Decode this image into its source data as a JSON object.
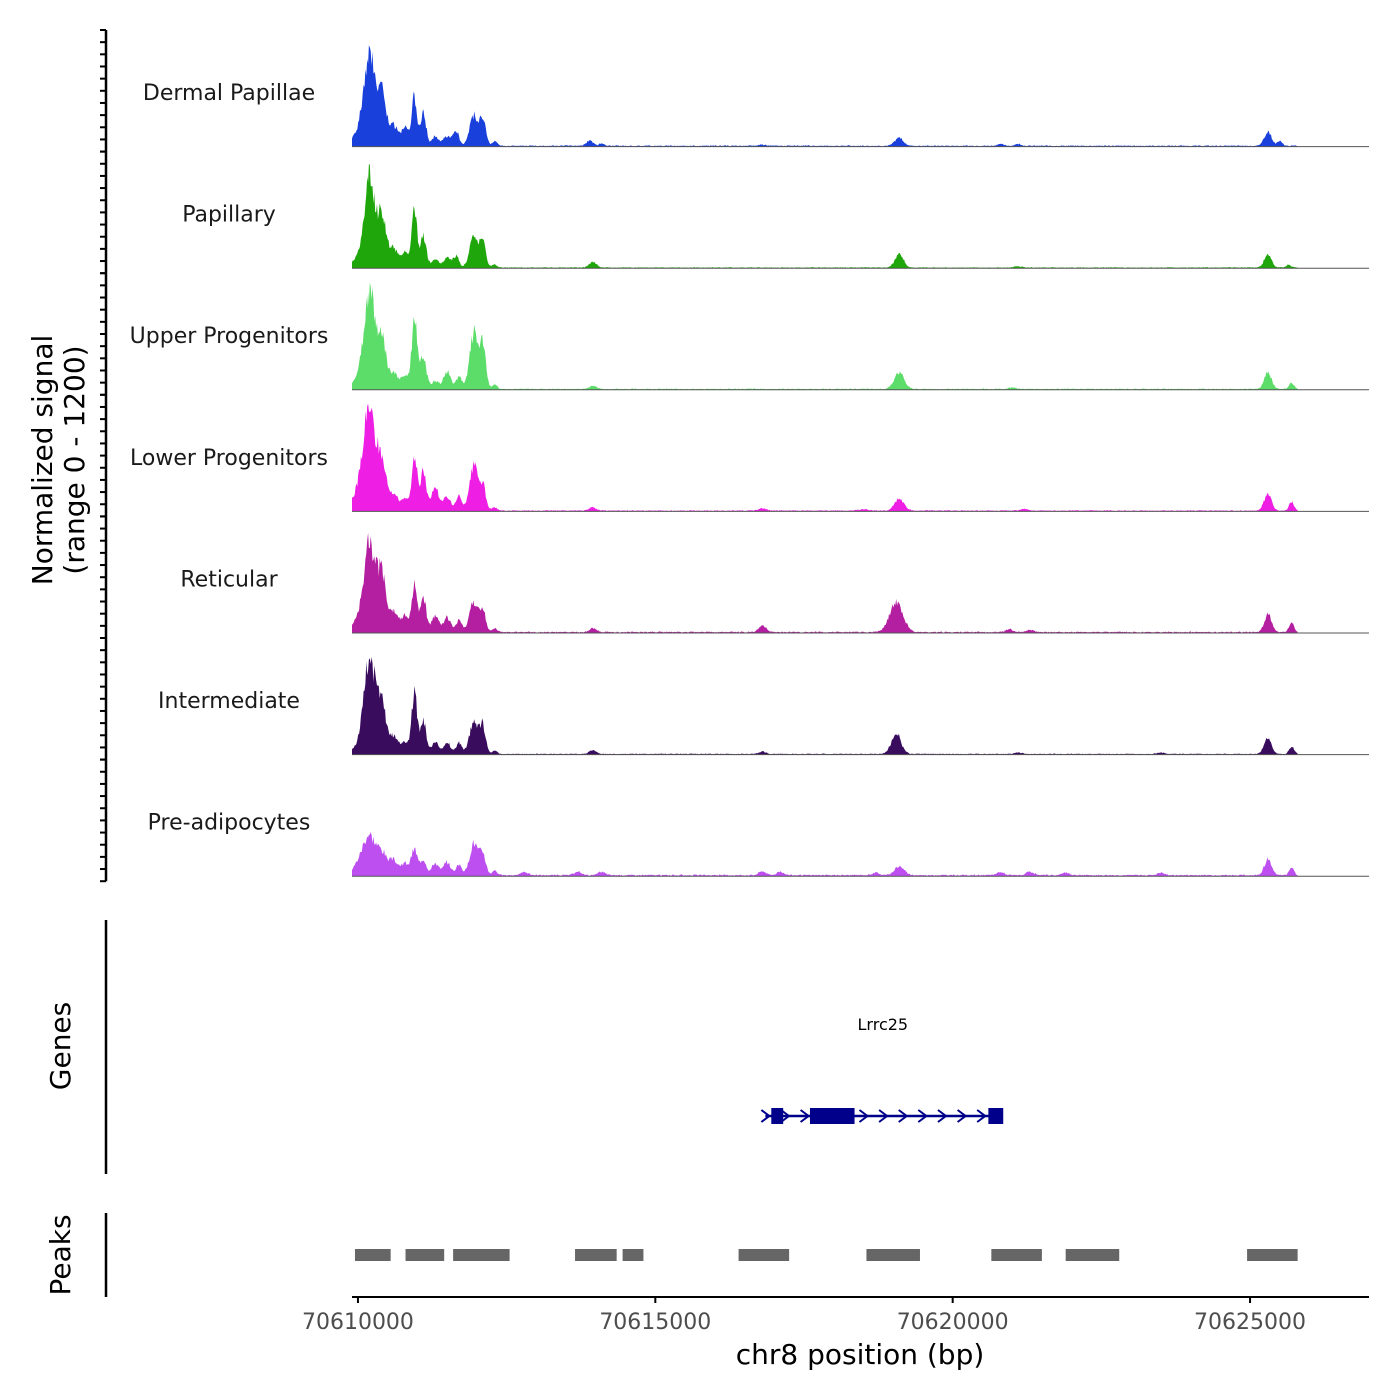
{
  "chart_data": {
    "type": "area",
    "title": "",
    "chromosome": "chr8",
    "xlabel": "chr8 position (bp)",
    "ylabel_line1": "Normalized signal",
    "ylabel_line2": "(range 0 - 1200)",
    "ylim": [
      0,
      1200
    ],
    "xlim": [
      70609900,
      70627000
    ],
    "x_ticks": [
      {
        "value": 70610000,
        "label": "70610000"
      },
      {
        "value": 70615000,
        "label": "70615000"
      },
      {
        "value": 70620000,
        "label": "70620000"
      },
      {
        "value": 70625000,
        "label": "70625000"
      }
    ],
    "signal_range": [
      70609900,
      70625800
    ],
    "series": [
      {
        "name": "Dermal Papillae",
        "color": "#1a40dc",
        "peaks": [
          [
            70610200,
            1050,
            90
          ],
          [
            70610400,
            620,
            70
          ],
          [
            70610050,
            200,
            120
          ],
          [
            70610600,
            250,
            80
          ],
          [
            70610800,
            220,
            60
          ],
          [
            70610950,
            600,
            45
          ],
          [
            70611100,
            430,
            45
          ],
          [
            70611300,
            120,
            60
          ],
          [
            70611500,
            120,
            60
          ],
          [
            70611650,
            180,
            50
          ],
          [
            70611950,
            380,
            70
          ],
          [
            70612100,
            320,
            50
          ],
          [
            70612300,
            60,
            40
          ],
          [
            70613900,
            60,
            60
          ],
          [
            70614100,
            30,
            40
          ],
          [
            70619100,
            100,
            70
          ],
          [
            70625300,
            180,
            60
          ],
          [
            70625500,
            60,
            40
          ],
          [
            70620800,
            25,
            50
          ],
          [
            70621100,
            25,
            50
          ],
          [
            70616800,
            15,
            60
          ]
        ],
        "baseline": 12
      },
      {
        "name": "Papillary",
        "color": "#1ea60a",
        "peaks": [
          [
            70610200,
            1080,
            80
          ],
          [
            70610400,
            650,
            70
          ],
          [
            70610050,
            150,
            120
          ],
          [
            70610600,
            240,
            80
          ],
          [
            70610800,
            180,
            60
          ],
          [
            70610950,
            720,
            45
          ],
          [
            70611100,
            380,
            50
          ],
          [
            70611300,
            100,
            60
          ],
          [
            70611500,
            120,
            60
          ],
          [
            70611650,
            140,
            50
          ],
          [
            70611950,
            380,
            70
          ],
          [
            70612100,
            300,
            50
          ],
          [
            70612300,
            40,
            40
          ],
          [
            70613950,
            70,
            60
          ],
          [
            70619100,
            170,
            70
          ],
          [
            70625300,
            160,
            60
          ],
          [
            70625650,
            40,
            40
          ],
          [
            70621100,
            15,
            60
          ]
        ],
        "baseline": 10
      },
      {
        "name": "Upper Progenitors",
        "color": "#5cdc68",
        "peaks": [
          [
            70610200,
            1150,
            90
          ],
          [
            70610400,
            600,
            70
          ],
          [
            70610050,
            160,
            120
          ],
          [
            70610600,
            200,
            80
          ],
          [
            70610800,
            160,
            60
          ],
          [
            70610950,
            880,
            45
          ],
          [
            70611100,
            420,
            50
          ],
          [
            70611300,
            100,
            60
          ],
          [
            70611500,
            220,
            60
          ],
          [
            70611700,
            150,
            50
          ],
          [
            70611950,
            700,
            70
          ],
          [
            70612100,
            520,
            50
          ],
          [
            70612300,
            60,
            40
          ],
          [
            70613950,
            40,
            60
          ],
          [
            70619100,
            210,
            80
          ],
          [
            70625300,
            220,
            60
          ],
          [
            70625700,
            80,
            40
          ],
          [
            70621000,
            20,
            60
          ]
        ],
        "baseline": 12
      },
      {
        "name": "Lower Progenitors",
        "color": "#ee1ee4",
        "peaks": [
          [
            70610200,
            1250,
            90
          ],
          [
            70610400,
            600,
            70
          ],
          [
            70610050,
            300,
            120
          ],
          [
            70610600,
            200,
            80
          ],
          [
            70610800,
            150,
            60
          ],
          [
            70610950,
            680,
            45
          ],
          [
            70611100,
            500,
            50
          ],
          [
            70611300,
            300,
            60
          ],
          [
            70611500,
            180,
            60
          ],
          [
            70611700,
            180,
            50
          ],
          [
            70611950,
            550,
            70
          ],
          [
            70612100,
            300,
            50
          ],
          [
            70612300,
            40,
            40
          ],
          [
            70613950,
            40,
            60
          ],
          [
            70616800,
            30,
            60
          ],
          [
            70619100,
            140,
            80
          ],
          [
            70625300,
            220,
            60
          ],
          [
            70625700,
            110,
            40
          ],
          [
            70621200,
            25,
            60
          ],
          [
            70618500,
            15,
            80
          ]
        ],
        "baseline": 12
      },
      {
        "name": "Reticular",
        "color": "#b41ea0",
        "peaks": [
          [
            70610200,
            1050,
            90
          ],
          [
            70610400,
            700,
            70
          ],
          [
            70610050,
            180,
            120
          ],
          [
            70610600,
            250,
            80
          ],
          [
            70610800,
            200,
            60
          ],
          [
            70610950,
            560,
            45
          ],
          [
            70611100,
            420,
            50
          ],
          [
            70611300,
            200,
            60
          ],
          [
            70611500,
            180,
            60
          ],
          [
            70611700,
            160,
            50
          ],
          [
            70611950,
            380,
            70
          ],
          [
            70612100,
            260,
            50
          ],
          [
            70612300,
            50,
            40
          ],
          [
            70613950,
            50,
            60
          ],
          [
            70616800,
            80,
            60
          ],
          [
            70619050,
            380,
            110
          ],
          [
            70625300,
            220,
            60
          ],
          [
            70625700,
            120,
            40
          ],
          [
            70620950,
            35,
            60
          ],
          [
            70621300,
            25,
            60
          ]
        ],
        "baseline": 14
      },
      {
        "name": "Intermediate",
        "color": "#3a0c5e",
        "peaks": [
          [
            70610200,
            1180,
            90
          ],
          [
            70610400,
            600,
            70
          ],
          [
            70610050,
            120,
            120
          ],
          [
            70610600,
            220,
            80
          ],
          [
            70610800,
            150,
            60
          ],
          [
            70610950,
            760,
            45
          ],
          [
            70611100,
            400,
            50
          ],
          [
            70611300,
            150,
            60
          ],
          [
            70611500,
            140,
            60
          ],
          [
            70611700,
            140,
            50
          ],
          [
            70611950,
            420,
            70
          ],
          [
            70612100,
            340,
            50
          ],
          [
            70612300,
            40,
            40
          ],
          [
            70613950,
            50,
            60
          ],
          [
            70616800,
            30,
            60
          ],
          [
            70619050,
            260,
            80
          ],
          [
            70625300,
            200,
            60
          ],
          [
            70625700,
            100,
            40
          ],
          [
            70621100,
            20,
            60
          ],
          [
            70623500,
            20,
            60
          ]
        ],
        "baseline": 10
      },
      {
        "name": "Pre-adipocytes",
        "color": "#bd4ef0",
        "peaks": [
          [
            70610200,
            420,
            100
          ],
          [
            70610400,
            260,
            80
          ],
          [
            70610050,
            160,
            120
          ],
          [
            70610600,
            180,
            80
          ],
          [
            70610800,
            140,
            60
          ],
          [
            70610950,
            320,
            50
          ],
          [
            70611100,
            200,
            50
          ],
          [
            70611300,
            150,
            60
          ],
          [
            70611500,
            160,
            60
          ],
          [
            70611700,
            130,
            50
          ],
          [
            70611950,
            400,
            70
          ],
          [
            70612100,
            260,
            50
          ],
          [
            70612300,
            60,
            40
          ],
          [
            70612800,
            40,
            60
          ],
          [
            70613700,
            40,
            60
          ],
          [
            70614100,
            40,
            60
          ],
          [
            70616800,
            50,
            60
          ],
          [
            70617100,
            40,
            60
          ],
          [
            70618700,
            30,
            60
          ],
          [
            70619100,
            110,
            80
          ],
          [
            70620800,
            40,
            60
          ],
          [
            70621300,
            40,
            60
          ],
          [
            70621900,
            30,
            60
          ],
          [
            70623500,
            30,
            60
          ],
          [
            70625300,
            200,
            60
          ],
          [
            70625700,
            90,
            40
          ]
        ],
        "baseline": 16
      }
    ],
    "gene_track": {
      "label": "Genes",
      "color": "#00008b",
      "genes": [
        {
          "name": "Lrrc25",
          "strand": "+",
          "start": 70616850,
          "end": 70620800,
          "exons": [
            [
              70616950,
              70617150
            ],
            [
              70617600,
              70618350
            ],
            [
              70620600,
              70620850
            ]
          ]
        }
      ]
    },
    "peak_track": {
      "label": "Peaks",
      "color": "#666666",
      "peaks": [
        [
          70609950,
          70610550
        ],
        [
          70610800,
          70611450
        ],
        [
          70611600,
          70612550
        ],
        [
          70613650,
          70614350
        ],
        [
          70614450,
          70614800
        ],
        [
          70616400,
          70617250
        ],
        [
          70618550,
          70619450
        ],
        [
          70620650,
          70621500
        ],
        [
          70621900,
          70622800
        ],
        [
          70624950,
          70625800
        ]
      ]
    }
  }
}
